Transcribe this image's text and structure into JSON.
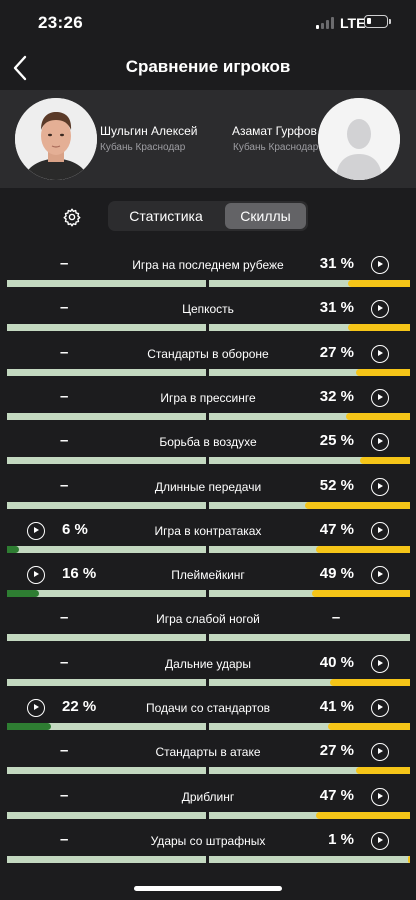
{
  "status_bar": {
    "time": "23:26",
    "network": "LTE"
  },
  "header": {
    "title": "Сравнение игроков"
  },
  "players": {
    "left": {
      "name": "Шульгин Алексей",
      "team": "Кубань Краснодар"
    },
    "right": {
      "name": "Азамат Гурфов",
      "team": "Кубань Краснодар"
    }
  },
  "tabs": {
    "stats": "Статистика",
    "skills": "Скиллы",
    "active": "skills"
  },
  "colors": {
    "left_fill": "#2e7d32",
    "right_fill": "#f5c518",
    "bar_track": "#c3d8c0"
  },
  "skills": [
    {
      "label": "Игра на последнем рубеже",
      "left": "–",
      "right": "31 %",
      "left_pct": 0,
      "right_pct": 31,
      "left_play": false,
      "right_play": true
    },
    {
      "label": "Цепкость",
      "left": "–",
      "right": "31 %",
      "left_pct": 0,
      "right_pct": 31,
      "left_play": false,
      "right_play": true
    },
    {
      "label": "Стандарты в обороне",
      "left": "–",
      "right": "27 %",
      "left_pct": 0,
      "right_pct": 27,
      "left_play": false,
      "right_play": true
    },
    {
      "label": "Игра в прессинге",
      "left": "–",
      "right": "32 %",
      "left_pct": 0,
      "right_pct": 32,
      "left_play": false,
      "right_play": true
    },
    {
      "label": "Борьба в воздухе",
      "left": "–",
      "right": "25 %",
      "left_pct": 0,
      "right_pct": 25,
      "left_play": false,
      "right_play": true
    },
    {
      "label": "Длинные передачи",
      "left": "–",
      "right": "52 %",
      "left_pct": 0,
      "right_pct": 52,
      "left_play": false,
      "right_play": true
    },
    {
      "label": "Игра в контратаках",
      "left": "6 %",
      "right": "47 %",
      "left_pct": 6,
      "right_pct": 47,
      "left_play": true,
      "right_play": true
    },
    {
      "label": "Плеймейкинг",
      "left": "16 %",
      "right": "49 %",
      "left_pct": 16,
      "right_pct": 49,
      "left_play": true,
      "right_play": true
    },
    {
      "label": "Игра слабой ногой",
      "left": "–",
      "right": "–",
      "left_pct": 0,
      "right_pct": 0,
      "left_play": false,
      "right_play": false
    },
    {
      "label": "Дальние удары",
      "left": "–",
      "right": "40 %",
      "left_pct": 0,
      "right_pct": 40,
      "left_play": false,
      "right_play": true
    },
    {
      "label": "Подачи со стандартов",
      "left": "22 %",
      "right": "41 %",
      "left_pct": 22,
      "right_pct": 41,
      "left_play": true,
      "right_play": true
    },
    {
      "label": "Стандарты в атаке",
      "left": "–",
      "right": "27 %",
      "left_pct": 0,
      "right_pct": 27,
      "left_play": false,
      "right_play": true
    },
    {
      "label": "Дриблинг",
      "left": "–",
      "right": "47 %",
      "left_pct": 0,
      "right_pct": 47,
      "left_play": false,
      "right_play": true
    },
    {
      "label": "Удары со штрафных",
      "left": "–",
      "right": "1 %",
      "left_pct": 0,
      "right_pct": 1,
      "left_play": false,
      "right_play": true
    }
  ]
}
